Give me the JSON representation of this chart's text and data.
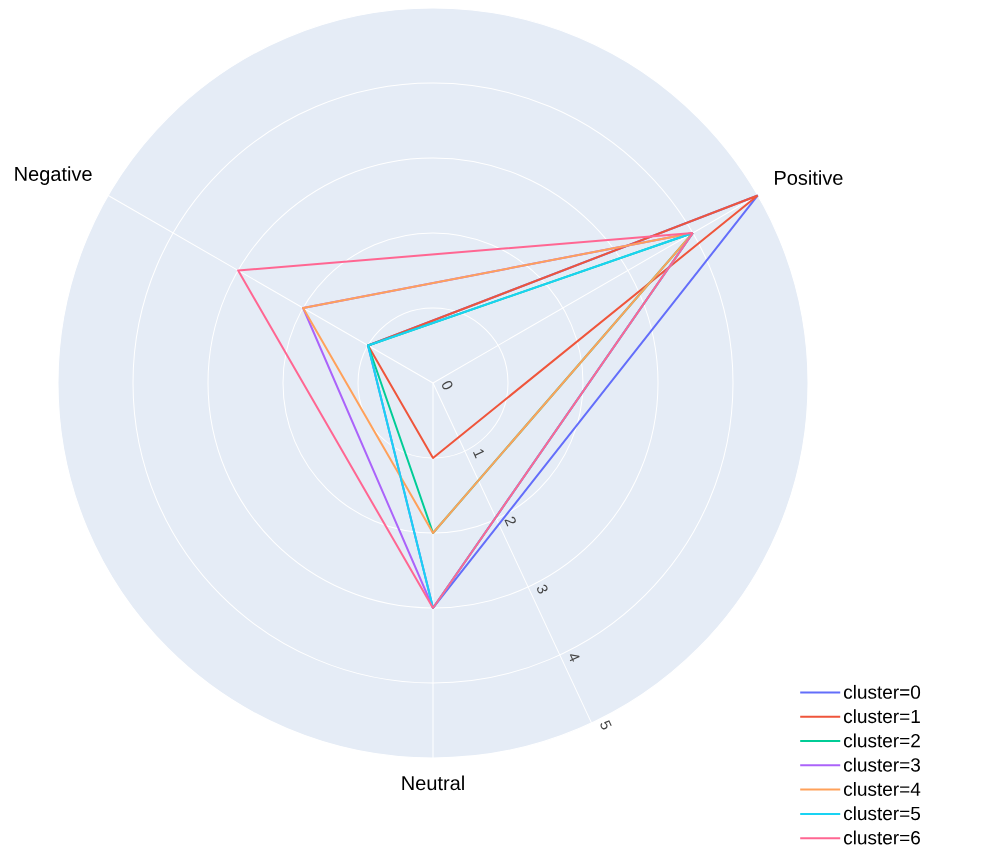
{
  "chart_data": {
    "type": "radar",
    "categories": [
      "Positive",
      "Neutral",
      "Negative"
    ],
    "ylim": [
      0,
      5
    ],
    "yticks": [
      0,
      1,
      2,
      3,
      4,
      5
    ],
    "grid": true,
    "legend": "bottom right",
    "series": [
      {
        "name": "cluster=0",
        "color": "#636efa",
        "values": [
          5,
          3,
          1
        ]
      },
      {
        "name": "cluster=1",
        "color": "#ef553b",
        "values": [
          5,
          1,
          1
        ]
      },
      {
        "name": "cluster=2",
        "color": "#00cc96",
        "values": [
          4,
          2,
          1
        ]
      },
      {
        "name": "cluster=3",
        "color": "#ab63fa",
        "values": [
          4,
          3,
          2
        ]
      },
      {
        "name": "cluster=4",
        "color": "#ffa15a",
        "values": [
          4,
          2,
          2
        ]
      },
      {
        "name": "cluster=5",
        "color": "#19d3f3",
        "values": [
          4,
          3,
          1
        ]
      },
      {
        "name": "cluster=6",
        "color": "#ff6692",
        "values": [
          4,
          3,
          3
        ]
      }
    ]
  }
}
